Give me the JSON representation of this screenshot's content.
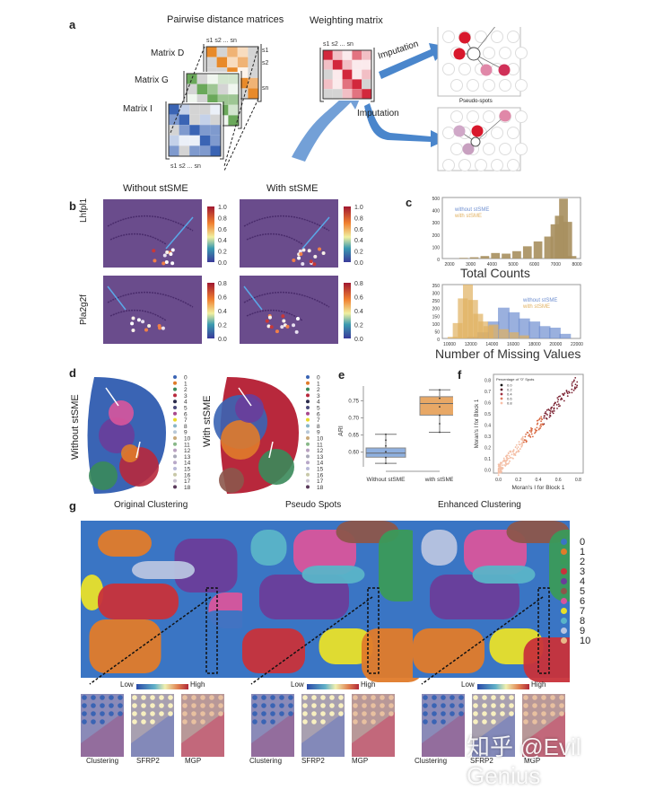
{
  "panels": {
    "a": {
      "label": "a",
      "pairwise_title": "Pairwise distance matrices",
      "weighting_title": "Weighting matrix",
      "matrices": [
        {
          "name": "Matrix D",
          "color": "#e88a2a"
        },
        {
          "name": "Matrix G",
          "color": "#6aa85a"
        },
        {
          "name": "Matrix I",
          "color": "#3a64b4"
        }
      ],
      "index_labels": {
        "s1": "s1",
        "s2": "s2",
        "dots": "...",
        "sn": "sn"
      },
      "imputation_top": "Imputation",
      "imputation_bottom": "Imputation",
      "pseudo_spots_label": "Pseudo-spots",
      "weight_color": "#d2283c"
    },
    "b": {
      "label": "b",
      "col_titles": [
        "Without stSME",
        "With stSME"
      ],
      "rows": [
        {
          "gene": "Lhfpl1",
          "ticks": [
            "1.0",
            "0.8",
            "0.6",
            "0.4",
            "0.2",
            "0.0"
          ]
        },
        {
          "gene": "Pla2g2f",
          "ticks": [
            "0.8",
            "0.6",
            "0.4",
            "0.2",
            "0.0"
          ]
        }
      ]
    },
    "c": {
      "label": "c",
      "top": {
        "legend": [
          "without stSME",
          "with stSME"
        ],
        "xlabel": "Total Counts",
        "yticks": [
          "500",
          "400",
          "300",
          "200",
          "100",
          "0"
        ],
        "xticks": [
          "2000",
          "3000",
          "4000",
          "5000",
          "6000",
          "7000",
          "8000"
        ]
      },
      "bottom": {
        "legend": [
          "without stSME",
          "with stSME"
        ],
        "xlabel": "Number of Missing Values",
        "yticks": [
          "350",
          "300",
          "250",
          "200",
          "150",
          "100",
          "50",
          "0"
        ],
        "xticks": [
          "10000",
          "12000",
          "14000",
          "16000",
          "18000",
          "20000",
          "22000"
        ]
      },
      "colors": {
        "without": "#6f8fd0",
        "with": "#e0b060"
      }
    },
    "d": {
      "label": "d",
      "row_titles": [
        "Without stSME",
        "With stSME"
      ],
      "legend": [
        "0",
        "1",
        "2",
        "3",
        "4",
        "5",
        "6",
        "7",
        "8",
        "9",
        "10",
        "11",
        "12",
        "13",
        "14",
        "15",
        "16",
        "17",
        "18"
      ]
    },
    "e": {
      "label": "e",
      "ylabel": "ARI",
      "yticks": [
        "0.75",
        "0.70",
        "0.65",
        "0.60"
      ],
      "categories": [
        "Without stSME",
        "with stSME"
      ]
    },
    "f": {
      "label": "f",
      "legend_title": "Percentage of \"0\" Spots",
      "legend": [
        "0.0",
        "0.2",
        "0.4",
        "0.6",
        "0.8"
      ],
      "xlabel": "Moran's I for Block 1",
      "ylabel": "Moran's I for Block 1",
      "xticks": [
        "0.0",
        "0.2",
        "0.4",
        "0.6",
        "0.8"
      ],
      "yticks": [
        "0.8",
        "0.7",
        "0.6",
        "0.5",
        "0.4",
        "0.3",
        "0.2",
        "0.1",
        "0.0"
      ]
    },
    "g": {
      "label": "g",
      "titles": [
        "Original Clustering",
        "Pseudo Spots",
        "Enhanced Clustering"
      ],
      "plus": "+",
      "equals": "=",
      "colorbar": {
        "low": "Low",
        "high": "High"
      },
      "inset_labels": [
        "Clustering",
        "SFRP2",
        "MGP"
      ],
      "legend": [
        "0",
        "1",
        "2",
        "3",
        "4",
        "5",
        "6",
        "7",
        "8",
        "9",
        "10"
      ],
      "cluster_colors": [
        "#3a75c4",
        "#e07b2a",
        "#3a9a5a",
        "#c8323a",
        "#6a3d9a",
        "#8c564b",
        "#d8559c",
        "#e8e02a",
        "#5ab4c8",
        "#b8c4e0",
        "#e8b888"
      ]
    }
  },
  "chart_data": [
    {
      "type": "bar",
      "title": "",
      "xlabel": "Total Counts",
      "ylabel": "",
      "xlim": [
        1500,
        8000
      ],
      "ylim": [
        0,
        500
      ],
      "series": [
        {
          "name": "without stSME",
          "x": [
            2500,
            3000,
            3500,
            4000,
            4500,
            5000,
            5500,
            6000,
            6500,
            6800,
            7000,
            7200,
            7400,
            7600
          ],
          "values": [
            5,
            10,
            20,
            45,
            40,
            60,
            100,
            140,
            180,
            280,
            350,
            490,
            300,
            20
          ]
        },
        {
          "name": "with stSME",
          "x": [
            2500,
            3000,
            3500,
            4000,
            4500,
            5000,
            5500,
            6000,
            6500,
            6800,
            7000,
            7200,
            7400,
            7600
          ],
          "values": [
            5,
            10,
            20,
            45,
            40,
            60,
            100,
            140,
            180,
            280,
            350,
            490,
            300,
            20
          ]
        }
      ]
    },
    {
      "type": "bar",
      "title": "",
      "xlabel": "Number of Missing Values",
      "ylabel": "",
      "xlim": [
        9000,
        22500
      ],
      "ylim": [
        0,
        350
      ],
      "series": [
        {
          "name": "without stSME",
          "x": [
            12000,
            13000,
            14000,
            15000,
            16000,
            17000,
            18000,
            19000,
            20000,
            21000
          ],
          "values": [
            10,
            40,
            110,
            200,
            170,
            130,
            110,
            80,
            70,
            30
          ]
        },
        {
          "name": "with stSME",
          "x": [
            10000,
            10500,
            11000,
            11500,
            12000,
            12500,
            13000,
            13500,
            14000,
            15000,
            16000,
            17000
          ],
          "values": [
            10,
            100,
            260,
            350,
            250,
            160,
            110,
            80,
            90,
            60,
            40,
            20
          ]
        }
      ]
    },
    {
      "type": "box",
      "title": "",
      "ylabel": "ARI",
      "ylim": [
        0.57,
        0.78
      ],
      "categories": [
        "Without stSME",
        "with stSME"
      ],
      "series": [
        {
          "name": "Without stSME",
          "min": 0.567,
          "q1": 0.585,
          "median": 0.597,
          "q3": 0.612,
          "max": 0.652,
          "color": "#8fb0e0"
        },
        {
          "name": "with stSME",
          "min": 0.658,
          "q1": 0.708,
          "median": 0.742,
          "q3": 0.762,
          "max": 0.782,
          "color": "#e8a866"
        }
      ]
    },
    {
      "type": "scatter",
      "title": "",
      "xlabel": "Moran's I for Block 1",
      "ylabel": "Moran's I for Block 1",
      "xlim": [
        -0.05,
        0.85
      ],
      "ylim": [
        -0.03,
        0.85
      ],
      "trend": "strong positive correlation along y≈x",
      "legend_title": "Percentage of \"0\" Spots",
      "legend": [
        "0.0",
        "0.2",
        "0.4",
        "0.6",
        "0.8"
      ]
    }
  ],
  "watermark": "知乎 @Evil Genius"
}
